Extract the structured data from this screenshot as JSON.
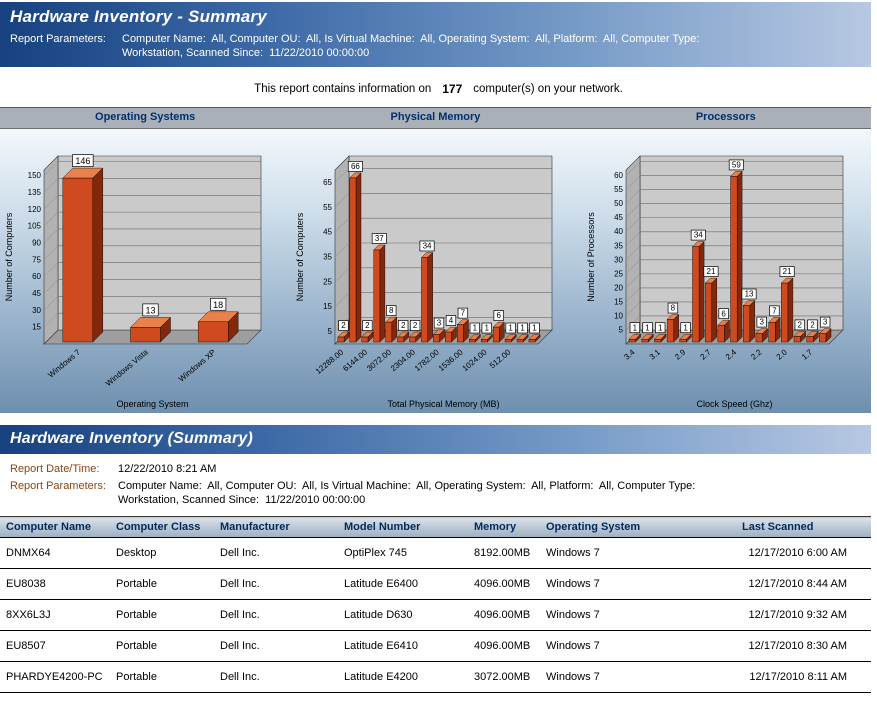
{
  "colors": {
    "header_gradient_start": "#17417f",
    "header_gradient_end": "#b7c8e2",
    "chart_band_bg": "#a9b0b8",
    "chart_title_color": "#00306e",
    "param_label_color": "#8b4513",
    "bar_front": "#cf4a1e",
    "bar_top": "#e8824a",
    "bar_side": "#84280c"
  },
  "header": {
    "title": "Hardware Inventory - Summary"
  },
  "report_parameters": {
    "label": "Report Parameters:",
    "line1": "Computer Name:  All, Computer OU:  All, Is Virtual Machine:  All, Operating System:  All, Platform:  All, Computer Type:",
    "line2": "Workstation, Scanned Since:  11/22/2010 00:00:00"
  },
  "summary": {
    "text_before": "This report contains information on",
    "count": "177",
    "text_after": "computer(s) on your network."
  },
  "chart_data": [
    {
      "type": "bar",
      "title": "Operating Systems",
      "categories": [
        "Windows 7",
        "Windows Vista",
        "Windows XP"
      ],
      "values": [
        146,
        13,
        18
      ],
      "xlabel": "Operating System",
      "ylabel": "Number of Computers",
      "yticks": [
        15,
        30,
        45,
        60,
        75,
        90,
        105,
        120,
        135,
        150
      ],
      "ymax": 155,
      "legend": "none",
      "grid": "horizontal"
    },
    {
      "type": "bar",
      "title": "Physical Memory",
      "categories": [
        "12288.00",
        "6144.00",
        "3072.00",
        "2304.00",
        "1782.00",
        "1536.00",
        "1024.00",
        "512.00"
      ],
      "values": [
        2,
        66,
        2,
        37,
        8,
        2,
        2,
        34,
        3,
        4,
        7,
        1,
        1,
        6,
        1,
        1,
        1
      ],
      "xlabel": "Total Physical Memory (MB)",
      "ylabel": "Number of Computers",
      "yticks": [
        5,
        15,
        25,
        35,
        45,
        55,
        65
      ],
      "ymax": 70,
      "legend": "none",
      "grid": "horizontal"
    },
    {
      "type": "bar",
      "title": "Processors",
      "categories": [
        "3.4",
        "3.1",
        "2.9",
        "2.7",
        "2.4",
        "2.2",
        "2.0",
        "1.7"
      ],
      "values": [
        1,
        1,
        1,
        8,
        1,
        34,
        21,
        6,
        59,
        13,
        3,
        7,
        21,
        2,
        2,
        3
      ],
      "xlabel": "Clock Speed (Ghz)",
      "ylabel": "Number of Processors",
      "yticks": [
        5,
        10,
        15,
        20,
        25,
        30,
        35,
        40,
        45,
        50,
        55,
        60
      ],
      "ymax": 62,
      "legend": "none",
      "grid": "horizontal"
    }
  ],
  "detail": {
    "title": "Hardware Inventory (Summary)",
    "date_label": "Report Date/Time:",
    "date_value": "12/22/2010 8:21 AM"
  },
  "table": {
    "columns": [
      "Computer Name",
      "Computer Class",
      "Manufacturer",
      "Model Number",
      "Memory",
      "Operating System",
      "Last Scanned"
    ],
    "rows": [
      [
        "DNMX64",
        "Desktop",
        "Dell Inc.",
        "OptiPlex 745",
        "8192.00MB",
        "Windows 7",
        "12/17/2010 6:00 AM"
      ],
      [
        "EU8038",
        "Portable",
        "Dell Inc.",
        "Latitude E6400",
        "4096.00MB",
        "Windows 7",
        "12/17/2010 8:44 AM"
      ],
      [
        "8XX6L3J",
        "Portable",
        "Dell Inc.",
        "Latitude D630",
        "4096.00MB",
        "Windows 7",
        "12/17/2010 9:32 AM"
      ],
      [
        "EU8507",
        "Portable",
        "Dell Inc.",
        "Latitude E6410",
        "4096.00MB",
        "Windows 7",
        "12/17/2010 8:30 AM"
      ],
      [
        "PHARDYE4200-PC",
        "Portable",
        "Dell Inc.",
        "Latitude E4200",
        "3072.00MB",
        "Windows 7",
        "12/17/2010 8:11 AM"
      ]
    ]
  }
}
